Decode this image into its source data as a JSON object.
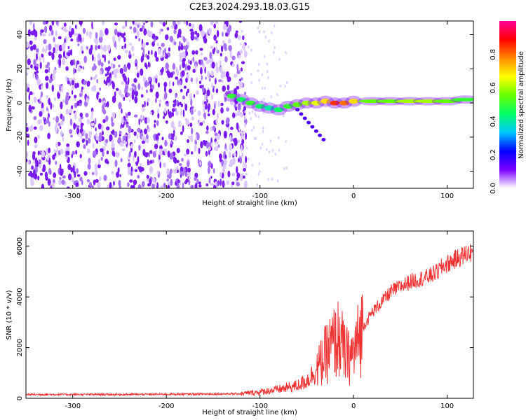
{
  "title": "C2E3.2024.293.18.03.G15",
  "chart_data": [
    {
      "type": "heatmap",
      "xlabel": "Height of straight line (km)",
      "ylabel": "Frequency (Hz)",
      "xlim": [
        -350,
        128
      ],
      "ylim": [
        -50,
        48
      ],
      "xticks": [
        -300,
        -200,
        -100,
        0,
        100
      ],
      "yticks": [
        -40,
        -20,
        0,
        20,
        40
      ],
      "colorbar": {
        "label": "Normalized spectral amplitude",
        "range": [
          0.0,
          1.0
        ],
        "ticks": [
          "0.0",
          "0.2",
          "0.4",
          "0.6",
          "0.8"
        ],
        "colormap": [
          "#ffffff",
          "#7a00ff",
          "#0000ff",
          "#00c8ff",
          "#00ff66",
          "#66ff00",
          "#ffff00",
          "#ff8800",
          "#ff0000",
          "#ff0099"
        ]
      },
      "signal_track": [
        {
          "x": -130,
          "y": 4,
          "amp": 0.5
        },
        {
          "x": -120,
          "y": 2,
          "amp": 0.45
        },
        {
          "x": -110,
          "y": 0,
          "amp": 0.5
        },
        {
          "x": -100,
          "y": -2,
          "amp": 0.45
        },
        {
          "x": -90,
          "y": -3,
          "amp": 0.4
        },
        {
          "x": -80,
          "y": -4,
          "amp": 0.45
        },
        {
          "x": -70,
          "y": -2,
          "amp": 0.5
        },
        {
          "x": -60,
          "y": -1,
          "amp": 0.55
        },
        {
          "x": -50,
          "y": 0,
          "amp": 0.6
        },
        {
          "x": -40,
          "y": 0,
          "amp": 0.65
        },
        {
          "x": -30,
          "y": 1,
          "amp": 0.7
        },
        {
          "x": -20,
          "y": 0,
          "amp": 0.85
        },
        {
          "x": -10,
          "y": 0,
          "amp": 0.8
        },
        {
          "x": 0,
          "y": 1,
          "amp": 0.7
        },
        {
          "x": 20,
          "y": 1,
          "amp": 0.55
        },
        {
          "x": 40,
          "y": 1,
          "amp": 0.55
        },
        {
          "x": 60,
          "y": 1,
          "amp": 0.6
        },
        {
          "x": 80,
          "y": 1,
          "amp": 0.6
        },
        {
          "x": 100,
          "y": 1,
          "amp": 0.55
        },
        {
          "x": 120,
          "y": 2,
          "amp": 0.5
        }
      ],
      "noise_region_x": [
        -350,
        -130
      ]
    },
    {
      "type": "line",
      "xlabel": "Height of straight line (km)",
      "ylabel": "SNR (10 * v/v)",
      "xlim": [
        -350,
        128
      ],
      "ylim": [
        0,
        6600
      ],
      "xticks": [
        -300,
        -200,
        -100,
        0,
        100
      ],
      "yticks": [
        0,
        2000,
        4000,
        6000
      ],
      "series": [
        {
          "color": "#ee3333",
          "x": [
            -350,
            -300,
            -250,
            -200,
            -150,
            -120,
            -100,
            -80,
            -60,
            -50,
            -40,
            -30,
            -25,
            -20,
            -15,
            -10,
            -5,
            0,
            5,
            10,
            20,
            30,
            40,
            50,
            60,
            70,
            80,
            90,
            95,
            100,
            110,
            120,
            128
          ],
          "y": [
            150,
            150,
            150,
            160,
            170,
            180,
            250,
            350,
            500,
            700,
            1100,
            1700,
            2000,
            2200,
            2400,
            1800,
            1600,
            1800,
            2300,
            2800,
            3400,
            3800,
            4200,
            4400,
            4600,
            4700,
            4800,
            5000,
            5200,
            5300,
            5500,
            5700,
            5800
          ]
        }
      ]
    }
  ]
}
